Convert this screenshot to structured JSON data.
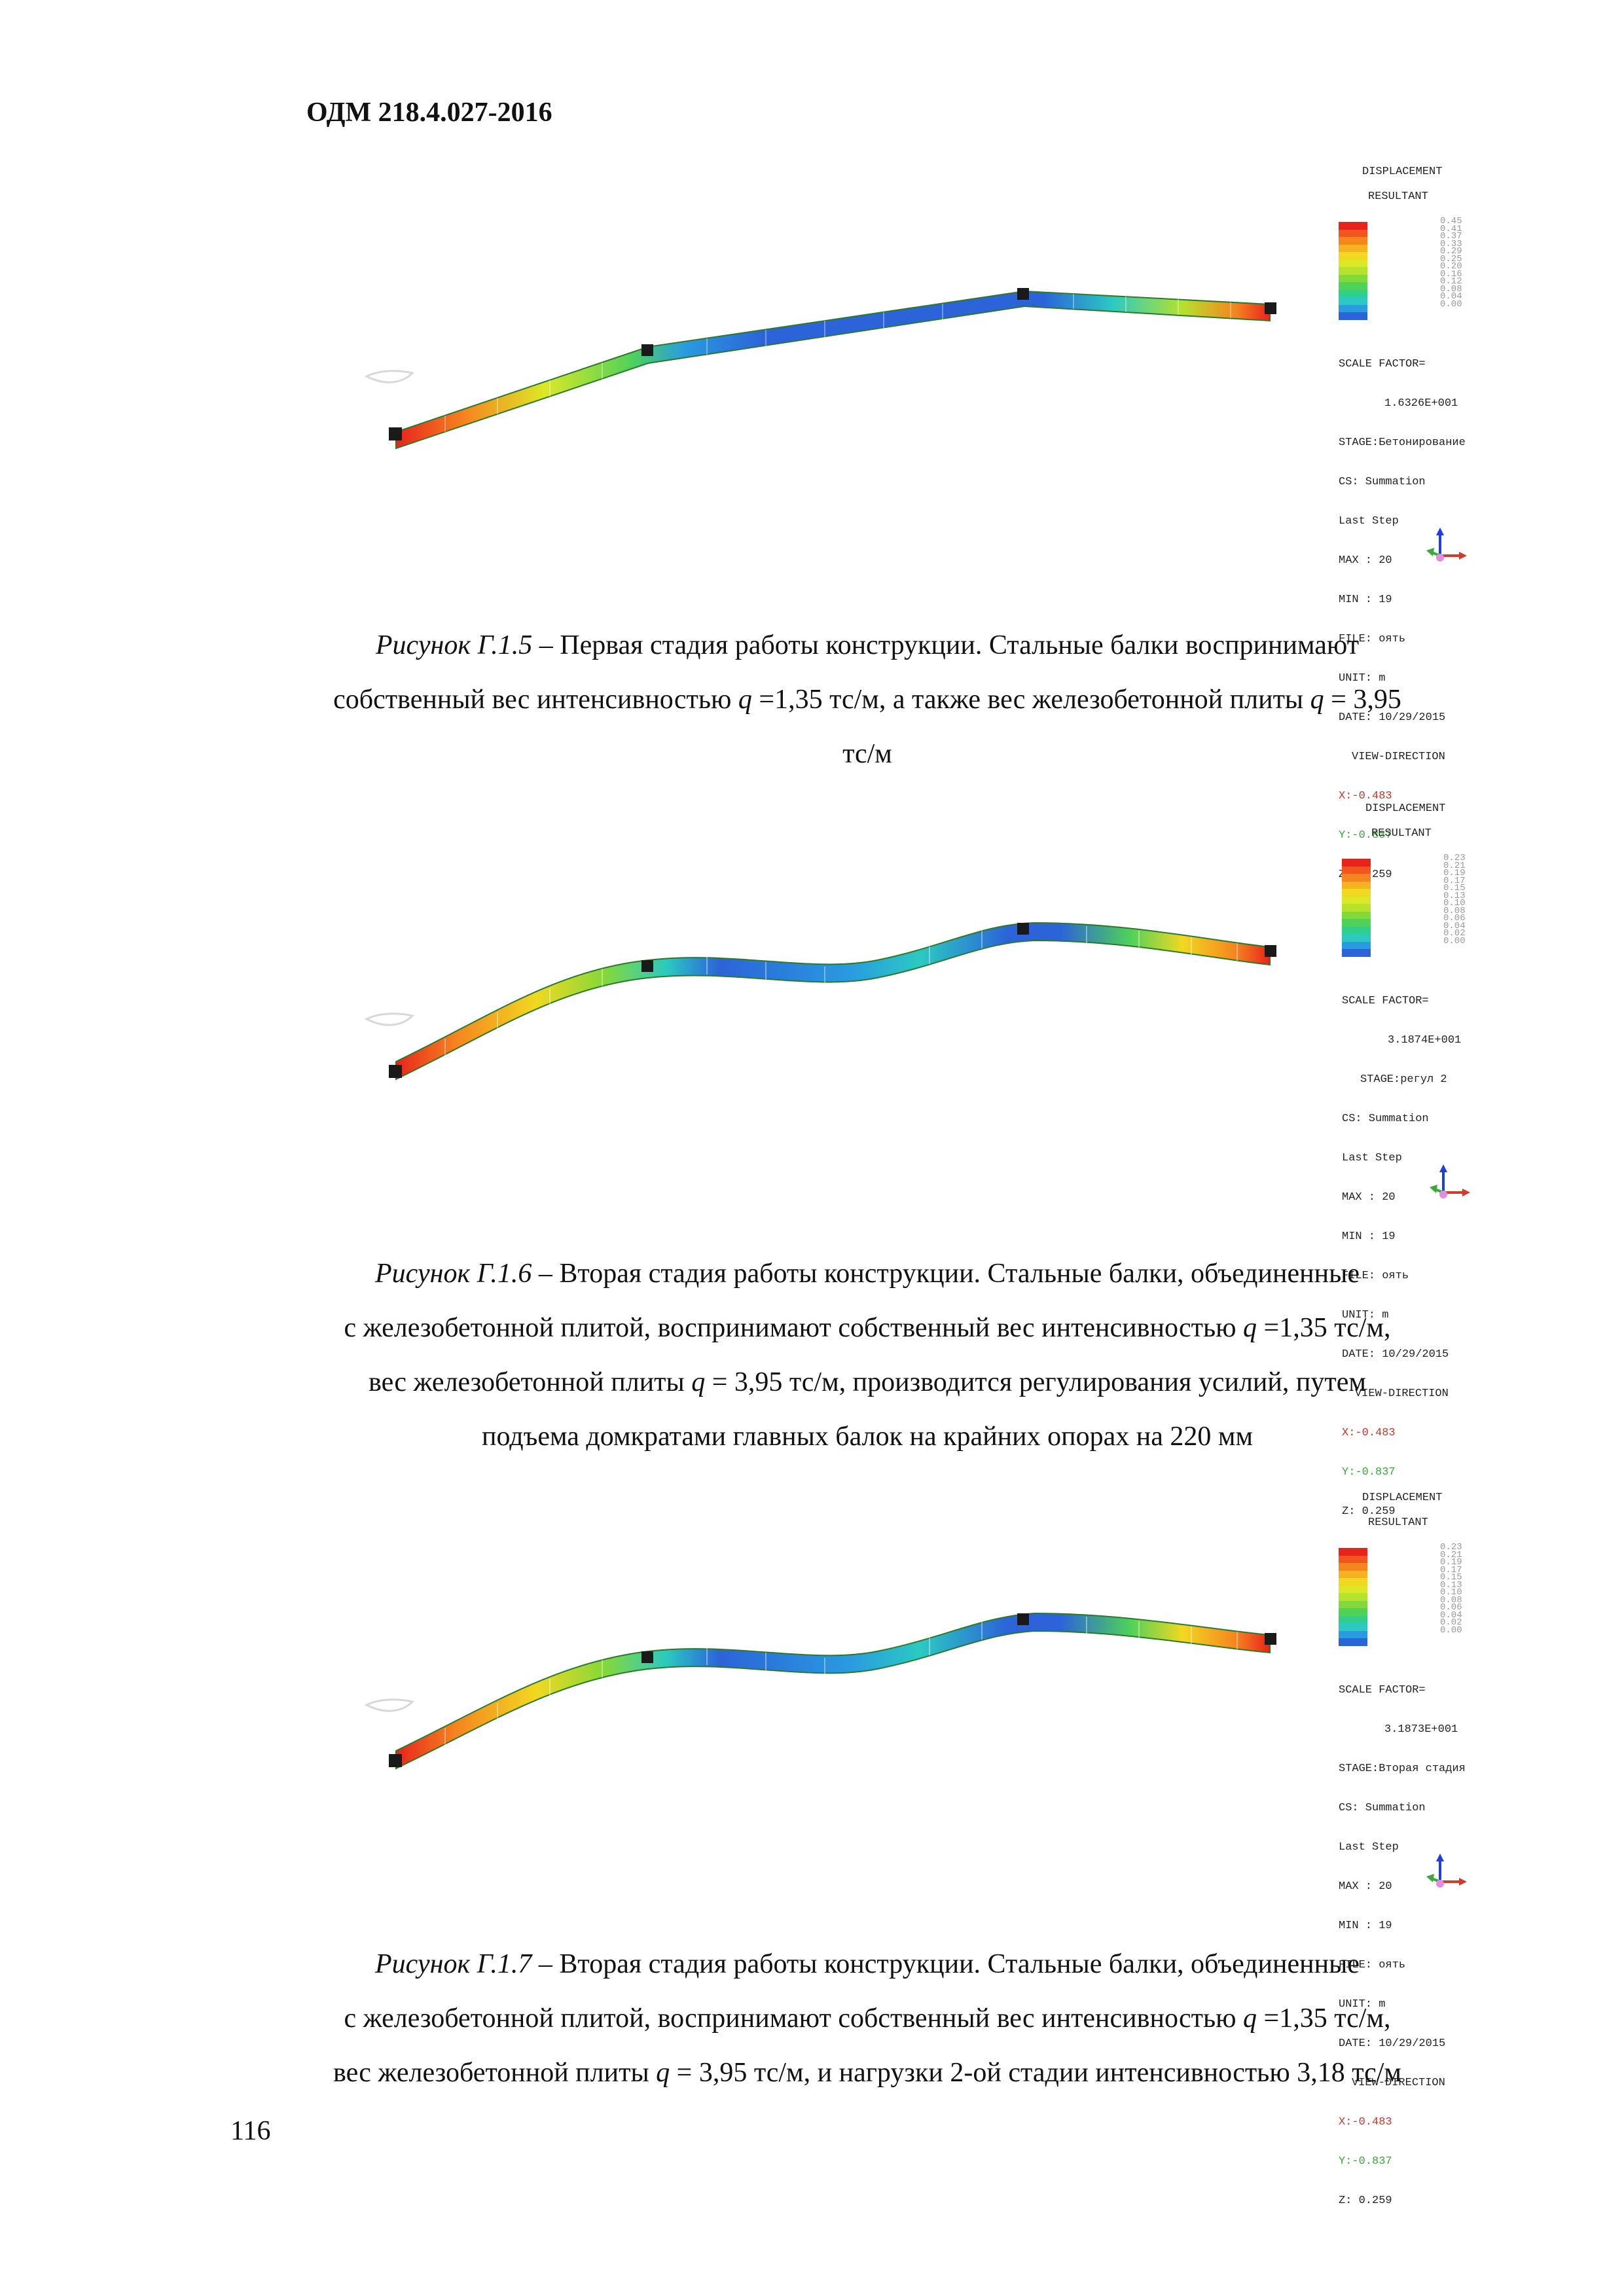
{
  "header": {
    "doc_code": "ОДМ 218.4.027-2016"
  },
  "legend_colors": [
    "#e8231c",
    "#f2551e",
    "#f5861f",
    "#f6b21f",
    "#f1d821",
    "#dbe827",
    "#b4e22d",
    "#83d83a",
    "#4fd15a",
    "#2ecf8b",
    "#2bc9c2",
    "#2a9be0",
    "#2c63d8"
  ],
  "figures": [
    {
      "legend": {
        "title1": "DISPLACEMENT",
        "title2": "RESULTANT",
        "ticks": [
          "0.45",
          "0.41",
          "0.37",
          "0.33",
          "0.29",
          "0.25",
          "0.20",
          "0.16",
          "0.12",
          "0.08",
          "0.04",
          "0.00"
        ],
        "scale_factor_label": "SCALE FACTOR=",
        "scale_factor_value": "1.6326E+001",
        "stage": "STAGE:Бетонирование",
        "cs": "CS: Summation",
        "step": "Last Step",
        "max": "MAX : 20",
        "min": "MIN : 19",
        "file": "FILE: оять",
        "unit": "UNIT: m",
        "date": "DATE: 10/29/2015",
        "view_direction": "VIEW-DIRECTION",
        "x": "X:-0.483",
        "y": "Y:-0.837",
        "z": "Z: 0.259"
      },
      "caption": {
        "label": "Рисунок Г.1.5",
        "line1": " – Первая стадия работы конструкции. Стальные балки воспринимают",
        "line2a": "собственный вес интенсивностью ",
        "q1": "q",
        "line2b": " =1,35 тс/м, а также вес железобетонной плиты ",
        "q2": "q",
        "line2c": " = 3,95",
        "line3": "тс/м"
      }
    },
    {
      "legend": {
        "title1": "DISPLACEMENT",
        "title2": "RESULTANT",
        "ticks": [
          "0.23",
          "0.21",
          "0.19",
          "0.17",
          "0.15",
          "0.13",
          "0.10",
          "0.08",
          "0.06",
          "0.04",
          "0.02",
          "0.00"
        ],
        "scale_factor_label": "SCALE FACTOR=",
        "scale_factor_value": "3.1874E+001",
        "stage": "STAGE:регул 2",
        "cs": "CS: Summation",
        "step": "Last Step",
        "max": "MAX : 20",
        "min": "MIN : 19",
        "file": "FILE: оять",
        "unit": "UNIT: m",
        "date": "DATE: 10/29/2015",
        "view_direction": "VIEW-DIRECTION",
        "x": "X:-0.483",
        "y": "Y:-0.837",
        "z": "Z: 0.259"
      },
      "caption": {
        "label": "Рисунок Г.1.6",
        "line1": " – Вторая стадия работы конструкции. Стальные балки, объединенные",
        "line2a": "с железобетонной плитой, воспринимают собственный вес интенсивностью ",
        "q1": "q",
        "line2b": " =1,35 тс/м,",
        "line3a": "вес железобетонной плиты ",
        "q2": "q",
        "line3b": " = 3,95 тс/м, производится регулирования усилий, путем",
        "line4": "подъема домкратами главных балок на крайних опорах на 220 мм"
      }
    },
    {
      "legend": {
        "title1": "DISPLACEMENT",
        "title2": "RESULTANT",
        "ticks": [
          "0.23",
          "0.21",
          "0.19",
          "0.17",
          "0.15",
          "0.13",
          "0.10",
          "0.08",
          "0.06",
          "0.04",
          "0.02",
          "0.00"
        ],
        "scale_factor_label": "SCALE FACTOR=",
        "scale_factor_value": "3.1873E+001",
        "stage": "STAGE:Вторая стадия",
        "cs": "CS: Summation",
        "step": "Last Step",
        "max": "MAX : 20",
        "min": "MIN : 19",
        "file": "FILE: оять",
        "unit": "UNIT: m",
        "date": "DATE: 10/29/2015",
        "view_direction": "VIEW-DIRECTION",
        "x": "X:-0.483",
        "y": "Y:-0.837",
        "z": "Z: 0.259"
      },
      "caption": {
        "label": "Рисунок Г.1.7",
        "line1": " – Вторая стадия работы конструкции. Стальные балки, объединенные",
        "line2a": "с железобетонной плитой, воспринимают собственный вес интенсивностью ",
        "q1": "q",
        "line2b": " =1,35 тс/м,",
        "line3a": "вес железобетонной плиты ",
        "q2": "q",
        "line3b": " = 3,95 тс/м, и нагрузки 2-ой стадии интенсивностью 3,18 тс/м"
      }
    }
  ],
  "page_number": "116"
}
